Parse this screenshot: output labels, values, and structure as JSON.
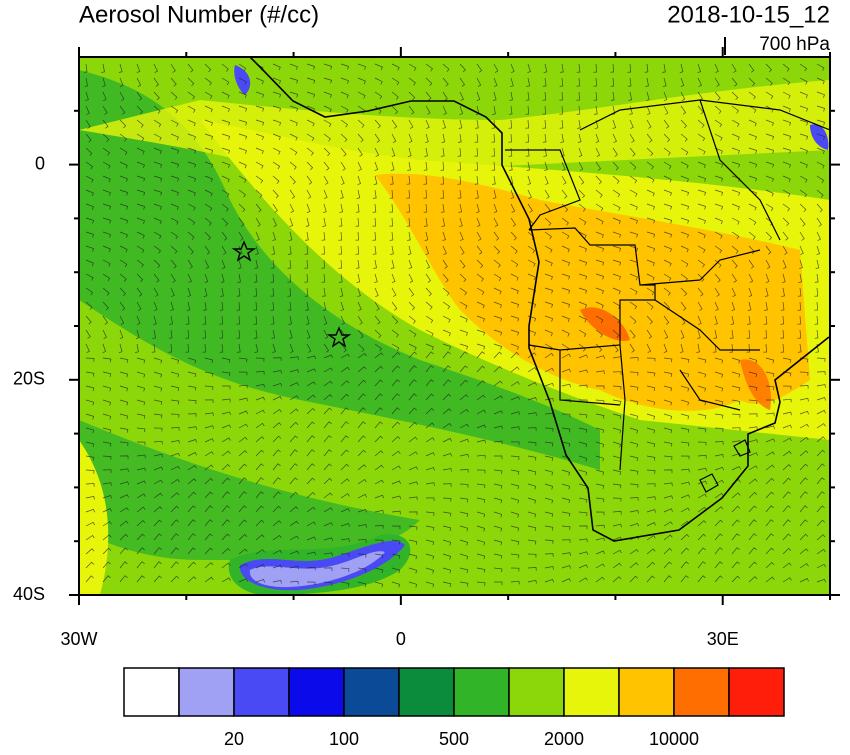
{
  "map": {
    "title": "Aerosol Number (#/cc)",
    "valid_time": "2018-10-15_12",
    "level": "700 hPa",
    "lonlim": [
      -30,
      40
    ],
    "latlim": [
      -40,
      10
    ],
    "lat_ticks": [
      {
        "value": 0,
        "label": "0"
      },
      {
        "value": -20,
        "label": "20S"
      },
      {
        "value": -40,
        "label": "40S"
      }
    ],
    "lat_minor_ticks": [
      5,
      -5,
      -10,
      -15,
      -25,
      -30,
      -35
    ],
    "lon_ticks": [
      {
        "value": -30,
        "label": "30W"
      },
      {
        "value": 0,
        "label": "0"
      },
      {
        "value": 30,
        "label": "30E"
      }
    ],
    "lon_minor_ticks": [
      -20,
      -10,
      10,
      20,
      40
    ],
    "colorbar": {
      "colors": [
        "#ffffff",
        "#a0a0f5",
        "#4a4af5",
        "#0a0aeb",
        "#0a4a96",
        "#0a8c3c",
        "#32b428",
        "#8cd70a",
        "#e6f50a",
        "#ffc300",
        "#ff6e00",
        "#ff1e0a"
      ],
      "labels": [
        "20",
        "100",
        "500",
        "2000",
        "10000"
      ]
    }
  }
}
